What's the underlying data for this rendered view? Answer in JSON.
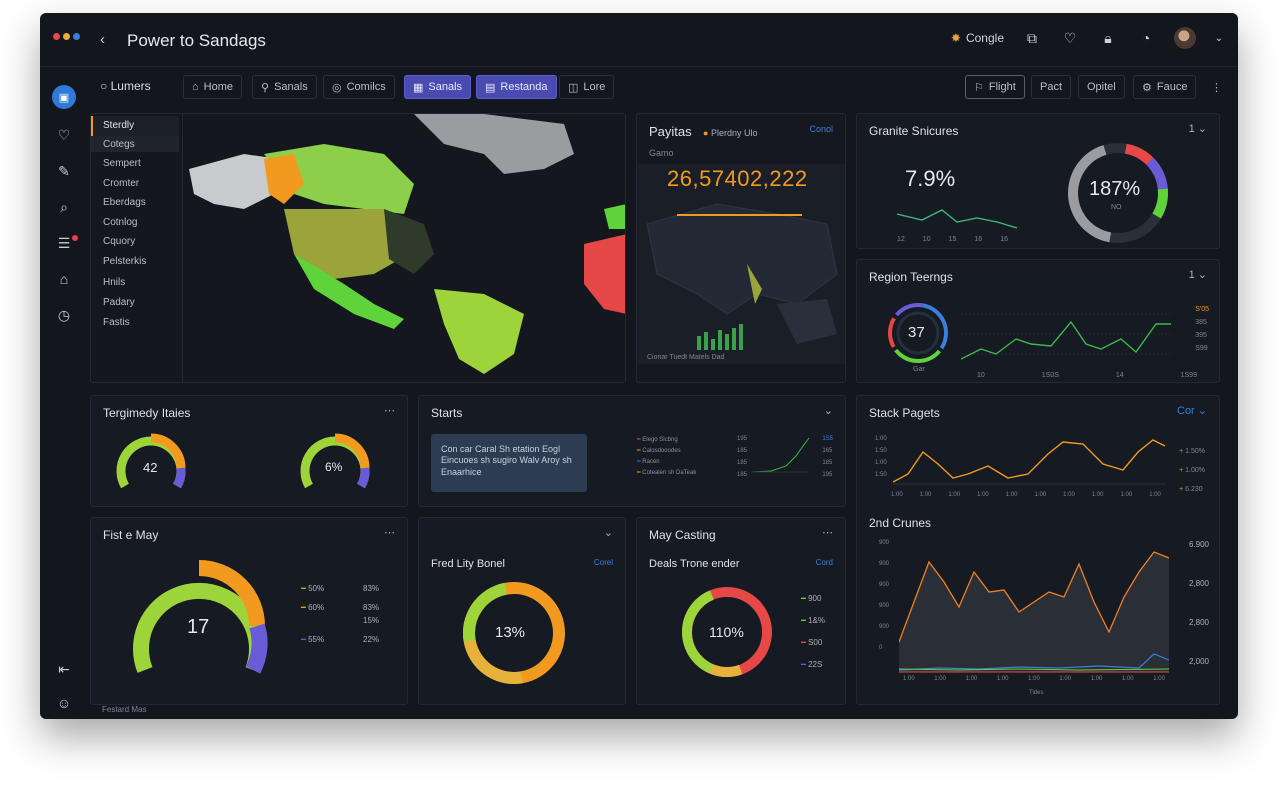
{
  "window": {
    "title": "Power to Sandags",
    "back_label": "‹",
    "account_label": "Congle"
  },
  "toolbar": {
    "left_label": "Lumers",
    "tabs": [
      {
        "label": "Home",
        "icon": "home-icon"
      },
      {
        "label": "Sanals",
        "icon": "user-icon"
      },
      {
        "label": "Comilcs",
        "icon": "globe-icon"
      },
      {
        "label": "Sanals",
        "icon": "grid-icon",
        "active": true
      },
      {
        "label": "Restanda",
        "icon": "chart-icon",
        "active": true
      },
      {
        "label": "Lore",
        "icon": "chat-icon"
      }
    ],
    "right_buttons": [
      "Flight",
      "Pact",
      "Opitel",
      "Fauce"
    ]
  },
  "sidebar_list": {
    "items": [
      "Sterdly",
      "Cotegs",
      "Sempert",
      "Cromter",
      "Eberdags",
      "Cotnlog",
      "Cquory",
      "Pelsterkis",
      "Hnils",
      "Padary",
      "Fastis"
    ]
  },
  "payitas": {
    "title": "Payitas",
    "tag": "Plerdny Ulo",
    "link": "Conol",
    "subtitle": "Gamo",
    "big_number": "26,57402,222",
    "footer": "Cionar Tuedt Matels Dad"
  },
  "granite": {
    "title": "Granite Snicures",
    "menu": "1 ⌄",
    "value": "7.9%",
    "ring_value": "187%",
    "ring_sub": "NO",
    "axis": [
      "12",
      "10",
      "15",
      "16",
      "16"
    ]
  },
  "region": {
    "title": "Region Teerngs",
    "menu": "1 ⌄",
    "ring_value": "37",
    "ring_sub": "Gar",
    "y_labels": [
      "S'05",
      "385",
      "395",
      "S99"
    ],
    "x_labels": [
      "10",
      "1S0S",
      "14",
      "1S99"
    ]
  },
  "tergimedy": {
    "title": "Tergimedy Itaies",
    "menu": "⋯",
    "gauge1": "42",
    "gauge2": "6%"
  },
  "starts": {
    "title": "Starts",
    "menu": "⌄",
    "callout": "Con car Caral Sh etation Eogl Eincuoes sh sugiro Walv Aroy sh Enaarhice",
    "legend": [
      "Elego Sicbng",
      "Calosdooodes",
      "Racen",
      "Cotealen sh DaTeak"
    ],
    "y_labels": [
      "195",
      "185",
      "185",
      "185"
    ],
    "right_labels": [
      "1S5",
      "165",
      "185",
      "195"
    ]
  },
  "stack_pages": {
    "title": "Stack Pagets",
    "menu": "Cor ⌄",
    "y_labels": [
      "1:00",
      "1:50",
      "1:00",
      "1:50"
    ],
    "x_labels": [
      "1:00",
      "1:00",
      "1:00",
      "1:00",
      "1:00",
      "1:00",
      "1:00",
      "1:00",
      "1:00",
      "1:00"
    ],
    "right_labels": [
      "1.50%",
      "1.00%",
      "6.230"
    ]
  },
  "crunches": {
    "title": "2nd Crunes",
    "y_labels": [
      "900",
      "900",
      "900",
      "900",
      "900",
      "0"
    ],
    "right_labels": [
      "6.900",
      "2,800",
      "2,800",
      "2,000"
    ],
    "x_labels": [
      "1:00",
      "1:00",
      "1:00",
      "1:00",
      "1:00",
      "1:00",
      "1:00",
      "1:00",
      "1:00"
    ],
    "footer": "Tides"
  },
  "fist_may": {
    "title": "Fist e May",
    "menu": "⋯",
    "gauge_value": "17",
    "legend": [
      {
        "pct": "50%",
        "val": "83%",
        "color": "#5fd43a"
      },
      {
        "pct": "60%",
        "val": "83%",
        "color": "#f29a1f"
      },
      {
        "pct": "",
        "val": "15%",
        "color": ""
      },
      {
        "pct": "55%",
        "val": "22%",
        "color": "#6a5bd6"
      }
    ],
    "footer": "Festard Mas"
  },
  "fred": {
    "menu": "⌄",
    "title": "Fred Lity Bonel",
    "link": "Corel",
    "ring_value": "13%"
  },
  "may_casting": {
    "title": "May Casting",
    "menu": "⋯",
    "subtitle": "Deals Trone ender",
    "link": "Cord",
    "ring_value": "110%",
    "legend": [
      {
        "val": "900",
        "color": "#5fd43a"
      },
      {
        "val": "1&%",
        "color": "#5fd43a"
      },
      {
        "val": "S00",
        "color": "#e64848"
      },
      {
        "val": "22S",
        "color": "#6a5bd6"
      }
    ]
  },
  "colors": {
    "green": "#5fd43a",
    "orange": "#f29a1f",
    "purple": "#6a5bd6",
    "red": "#e64848",
    "blue": "#3a7fd9"
  }
}
